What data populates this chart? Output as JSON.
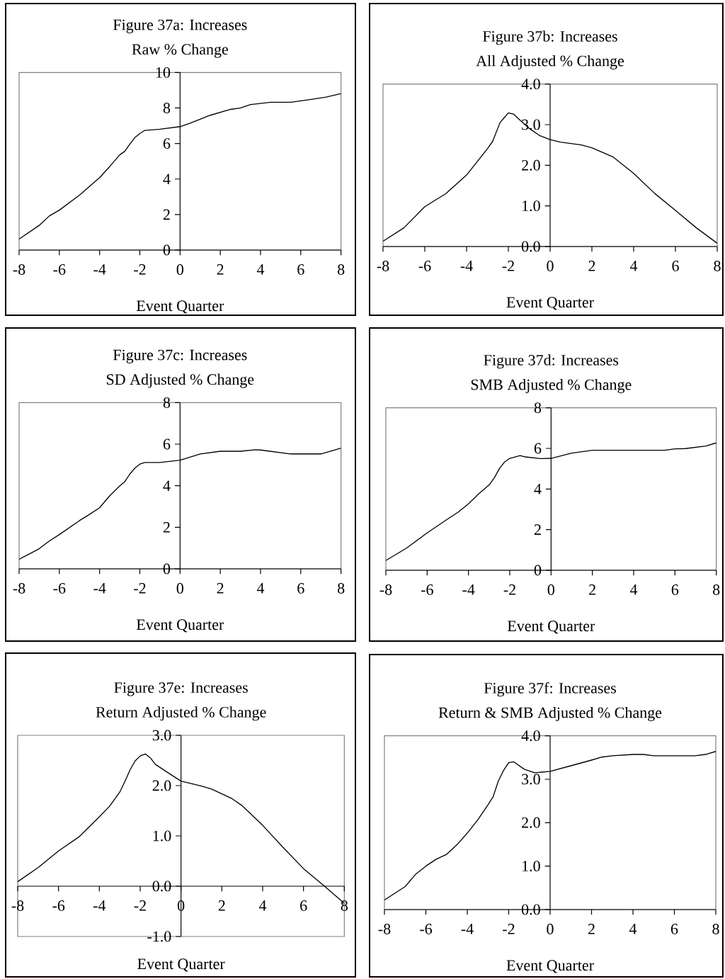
{
  "chart_data": [
    {
      "type": "line",
      "title": "Figure 37a: Increases",
      "subtitle": "Raw % Change",
      "xlabel": "Event Quarter",
      "color": "#000000",
      "xlim": [
        -8,
        8
      ],
      "xticks": [
        -8,
        -6,
        -4,
        -2,
        0,
        2,
        4,
        6,
        8
      ],
      "ylim": [
        0,
        10
      ],
      "yticks": [
        0,
        2,
        4,
        6,
        8,
        10
      ],
      "x": [
        -8,
        -7,
        -6.5,
        -6,
        -5,
        -4,
        -3.5,
        -3,
        -2.75,
        -2.5,
        -2.25,
        -2,
        -1.75,
        -1,
        0,
        0.5,
        1.5,
        2.5,
        3,
        3.5,
        4.5,
        5.5,
        6.5,
        7.25,
        8
      ],
      "values": [
        0.62,
        1.39,
        1.92,
        2.25,
        3.09,
        4.08,
        4.7,
        5.36,
        5.56,
        5.96,
        6.33,
        6.56,
        6.74,
        6.81,
        6.95,
        7.15,
        7.59,
        7.92,
        8.0,
        8.19,
        8.32,
        8.32,
        8.48,
        8.61,
        8.81
      ]
    },
    {
      "type": "line",
      "title": "Figure 37b: Increases",
      "subtitle": "All Adjusted % Change",
      "xlabel": "Event Quarter",
      "color": "#000000",
      "xlim": [
        -8,
        8
      ],
      "xticks": [
        -8,
        -6,
        -4,
        -2,
        0,
        2,
        4,
        6,
        8
      ],
      "ylim": [
        0,
        4
      ],
      "yticks": [
        {
          "value": 0,
          "label": "0.0"
        },
        {
          "value": 1,
          "label": "1.0"
        },
        {
          "value": 2,
          "label": "2.0"
        },
        {
          "value": 3,
          "label": "3.0"
        },
        {
          "value": 4,
          "label": "4.0"
        }
      ],
      "x": [
        -8,
        -7,
        -6,
        -5,
        -4,
        -3,
        -2.75,
        -2.4,
        -2.25,
        -2,
        -1.75,
        -1.5,
        -1,
        -0.5,
        0,
        0.5,
        1.5,
        2,
        3,
        4,
        5,
        6,
        7,
        8
      ],
      "values": [
        0.13,
        0.46,
        0.98,
        1.3,
        1.76,
        2.41,
        2.59,
        3.05,
        3.14,
        3.29,
        3.26,
        3.14,
        2.91,
        2.73,
        2.63,
        2.57,
        2.5,
        2.43,
        2.21,
        1.8,
        1.31,
        0.89,
        0.46,
        0.08
      ]
    },
    {
      "type": "line",
      "title": "Figure 37c: Increases",
      "subtitle": "SD Adjusted % Change",
      "xlabel": "Event Quarter",
      "color": "#000000",
      "xlim": [
        -8,
        8
      ],
      "xticks": [
        -8,
        -6,
        -4,
        -2,
        0,
        2,
        4,
        6,
        8
      ],
      "ylim": [
        0,
        8
      ],
      "yticks": [
        0,
        2,
        4,
        6,
        8
      ],
      "x": [
        -8,
        -7.5,
        -7,
        -6.5,
        -6,
        -5,
        -4.5,
        -4,
        -3.5,
        -3,
        -2.75,
        -2.5,
        -2.25,
        -2,
        -1.75,
        -1,
        0,
        1,
        2,
        3,
        3.75,
        4,
        5.5,
        7,
        8
      ],
      "values": [
        0.46,
        0.71,
        0.97,
        1.34,
        1.65,
        2.32,
        2.62,
        2.94,
        3.51,
        3.99,
        4.19,
        4.56,
        4.84,
        5.04,
        5.12,
        5.12,
        5.23,
        5.53,
        5.66,
        5.66,
        5.73,
        5.72,
        5.53,
        5.53,
        5.81
      ]
    },
    {
      "type": "line",
      "title": "Figure 37d: Increases",
      "subtitle": "SMB Adjusted % Change",
      "xlabel": "Event Quarter",
      "color": "#000000",
      "xlim": [
        -8,
        8
      ],
      "xticks": [
        -8,
        -6,
        -4,
        -2,
        0,
        2,
        4,
        6,
        8
      ],
      "ylim": [
        0,
        8
      ],
      "yticks": [
        0,
        2,
        4,
        6,
        8
      ],
      "x": [
        -8,
        -7,
        -6,
        -5,
        -4.5,
        -4,
        -3.5,
        -3,
        -2.75,
        -2.5,
        -2.25,
        -2,
        -1.5,
        -1.25,
        -0.5,
        0,
        1,
        2,
        3,
        5.5,
        6,
        6.5,
        7.5,
        8
      ],
      "values": [
        0.48,
        1.09,
        1.84,
        2.53,
        2.86,
        3.27,
        3.77,
        4.2,
        4.55,
        5.01,
        5.33,
        5.51,
        5.65,
        5.58,
        5.5,
        5.51,
        5.77,
        5.91,
        5.91,
        5.91,
        5.98,
        5.99,
        6.12,
        6.27
      ]
    },
    {
      "type": "line",
      "title": "Figure 37e: Increases",
      "subtitle": "Return Adjusted % Change",
      "xlabel": "Event Quarter",
      "color": "#000000",
      "xlim": [
        -8,
        8
      ],
      "xticks": [
        -8,
        -6,
        -4,
        -2,
        0,
        2,
        4,
        6,
        8
      ],
      "ylim": [
        -1,
        3
      ],
      "yticks": [
        {
          "value": -1,
          "label": "-1.0"
        },
        {
          "value": 0,
          "label": "0.0"
        },
        {
          "value": 1,
          "label": "1.0"
        },
        {
          "value": 2,
          "label": "2.0"
        },
        {
          "value": 3,
          "label": "3.0"
        }
      ],
      "x": [
        -8,
        -7,
        -6,
        -5,
        -4,
        -3.5,
        -3,
        -2.75,
        -2.5,
        -2.25,
        -2,
        -1.75,
        -1.5,
        -1.25,
        -0.5,
        0,
        1,
        1.5,
        2.5,
        3,
        4,
        5,
        6,
        7,
        8
      ],
      "values": [
        0.09,
        0.37,
        0.7,
        0.98,
        1.38,
        1.59,
        1.87,
        2.08,
        2.31,
        2.49,
        2.59,
        2.63,
        2.55,
        2.42,
        2.22,
        2.09,
        1.99,
        1.93,
        1.74,
        1.6,
        1.21,
        0.77,
        0.35,
        0.01,
        -0.34
      ]
    },
    {
      "type": "line",
      "title": "Figure 37f: Increases",
      "subtitle": "Return & SMB Adjusted % Change",
      "xlabel": "Event Quarter",
      "color": "#000000",
      "xlim": [
        -8,
        8
      ],
      "xticks": [
        -8,
        -6,
        -4,
        -2,
        0,
        2,
        4,
        6,
        8
      ],
      "ylim": [
        0,
        4
      ],
      "yticks": [
        {
          "value": 0,
          "label": "0.0"
        },
        {
          "value": 1,
          "label": "1.0"
        },
        {
          "value": 2,
          "label": "2.0"
        },
        {
          "value": 3,
          "label": "3.0"
        },
        {
          "value": 4,
          "label": "4.0"
        }
      ],
      "x": [
        -8,
        -7,
        -6.5,
        -6,
        -5.5,
        -5,
        -4.5,
        -4,
        -3.5,
        -3,
        -2.75,
        -2.5,
        -2.25,
        -2,
        -1.75,
        -1.25,
        -0.75,
        0,
        1,
        2,
        2.5,
        3,
        4,
        4.5,
        5,
        6,
        7,
        7.5,
        8
      ],
      "values": [
        0.22,
        0.53,
        0.81,
        1.0,
        1.16,
        1.27,
        1.49,
        1.76,
        2.06,
        2.41,
        2.6,
        2.96,
        3.2,
        3.38,
        3.4,
        3.23,
        3.15,
        3.18,
        3.31,
        3.44,
        3.51,
        3.54,
        3.57,
        3.57,
        3.54,
        3.54,
        3.54,
        3.57,
        3.64
      ]
    }
  ]
}
